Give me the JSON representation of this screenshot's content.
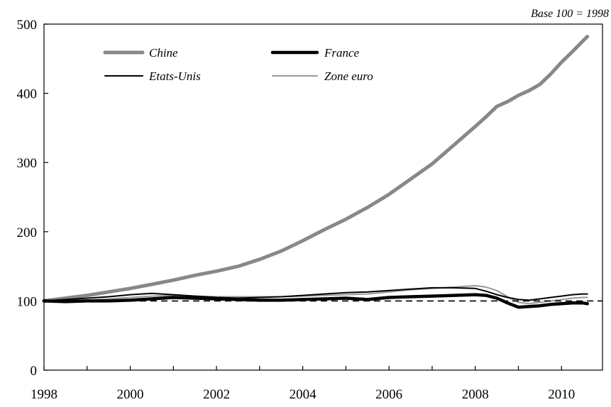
{
  "chart_data": {
    "type": "line",
    "title": "",
    "annotation": "Base 100 = 1998",
    "xlabel": "",
    "ylabel": "",
    "xlim": [
      1998,
      2010.95
    ],
    "ylim": [
      0,
      500
    ],
    "x_ticks": [
      1998,
      2000,
      2002,
      2004,
      2006,
      2008,
      2010
    ],
    "x_tick_labels": [
      "1998",
      "2000",
      "2002",
      "2004",
      "2006",
      "2008",
      "2010"
    ],
    "y_ticks": [
      0,
      100,
      200,
      300,
      400,
      500
    ],
    "y_tick_labels": [
      "0",
      "100",
      "200",
      "300",
      "400",
      "500"
    ],
    "grid": false,
    "reference_line": {
      "y": 100,
      "style": "dashed",
      "color": "#000000"
    },
    "legend_position": "top-left",
    "series": [
      {
        "name": "Chine",
        "color": "#888888",
        "width": 5,
        "x": [
          1998,
          1998.5,
          1999,
          1999.5,
          2000,
          2000.5,
          2001,
          2001.5,
          2002,
          2002.5,
          2003,
          2003.5,
          2004,
          2004.5,
          2005,
          2005.5,
          2006,
          2006.5,
          2007,
          2007.5,
          2008,
          2008.25,
          2008.5,
          2008.75,
          2009,
          2009.25,
          2009.5,
          2009.75,
          2010,
          2010.25,
          2010.5,
          2010.6
        ],
        "y": [
          100,
          104,
          108,
          113,
          118,
          124,
          130,
          137,
          143,
          150,
          160,
          172,
          187,
          203,
          218,
          235,
          254,
          276,
          298,
          325,
          352,
          366,
          381,
          388,
          397,
          404,
          413,
          428,
          445,
          460,
          476,
          482
        ]
      },
      {
        "name": "France",
        "color": "#000000",
        "width": 4.5,
        "x": [
          1998,
          1998.5,
          1999,
          1999.5,
          2000,
          2000.5,
          2001,
          2001.5,
          2002,
          2002.5,
          2003,
          2003.5,
          2004,
          2004.5,
          2005,
          2005.5,
          2006,
          2006.5,
          2007,
          2007.5,
          2008,
          2008.25,
          2008.5,
          2008.75,
          2009,
          2009.25,
          2009.5,
          2009.75,
          2010,
          2010.25,
          2010.5,
          2010.6
        ],
        "y": [
          100,
          99,
          100,
          100,
          101,
          103,
          105,
          104,
          103,
          102,
          101,
          101,
          102,
          103,
          104,
          102,
          105,
          106,
          107,
          108,
          109,
          108,
          104,
          97,
          91,
          92,
          93,
          95,
          96,
          97,
          97,
          96
        ]
      },
      {
        "name": "Etats-Unis",
        "color": "#000000",
        "width": 2,
        "x": [
          1998,
          1998.5,
          1999,
          1999.5,
          2000,
          2000.5,
          2001,
          2001.5,
          2002,
          2002.5,
          2003,
          2003.5,
          2004,
          2004.5,
          2005,
          2005.5,
          2006,
          2006.5,
          2007,
          2007.5,
          2008,
          2008.25,
          2008.5,
          2008.75,
          2009,
          2009.25,
          2009.5,
          2009.75,
          2010,
          2010.25,
          2010.5,
          2010.6
        ],
        "y": [
          100,
          102,
          104,
          106,
          109,
          111,
          109,
          107,
          105,
          104,
          105,
          106,
          108,
          110,
          112,
          113,
          115,
          117,
          119,
          119,
          118,
          114,
          109,
          105,
          102,
          101,
          103,
          105,
          107,
          109,
          110,
          110
        ]
      },
      {
        "name": "Zone euro",
        "color": "#999999",
        "width": 2,
        "x": [
          1998,
          1998.5,
          1999,
          1999.5,
          2000,
          2000.5,
          2001,
          2001.5,
          2002,
          2002.5,
          2003,
          2003.5,
          2004,
          2004.5,
          2005,
          2005.5,
          2006,
          2006.5,
          2007,
          2007.5,
          2008,
          2008.25,
          2008.5,
          2008.75,
          2009,
          2009.25,
          2009.5,
          2009.75,
          2010,
          2010.25,
          2010.5,
          2010.6
        ],
        "y": [
          100,
          101,
          101,
          103,
          105,
          107,
          108,
          107,
          106,
          106,
          106,
          106,
          107,
          108,
          109,
          110,
          113,
          116,
          118,
          120,
          122,
          120,
          115,
          106,
          98,
          96,
          98,
          100,
          102,
          104,
          105,
          105
        ]
      }
    ]
  }
}
